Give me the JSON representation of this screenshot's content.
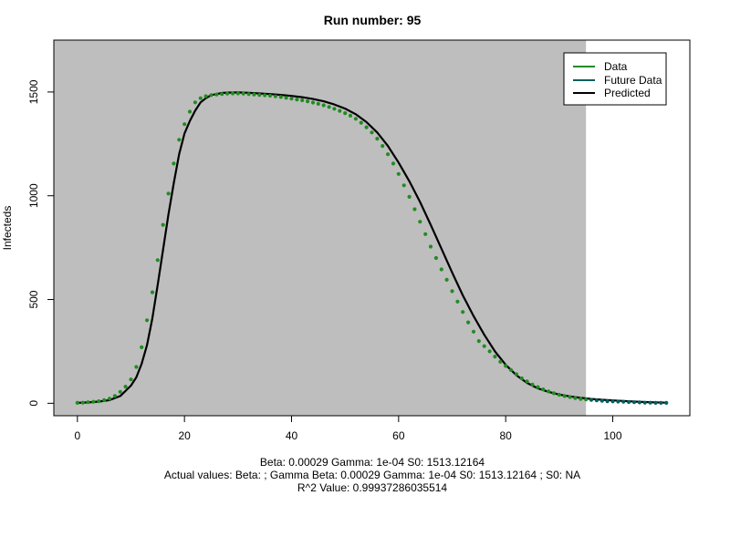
{
  "chart_data": {
    "type": "line",
    "title": "Run number:  95",
    "xlabel": "",
    "ylabel": "Infecteds",
    "xlim": [
      -4.4,
      114.4
    ],
    "ylim": [
      -60,
      1750
    ],
    "x_ticks": [
      0,
      20,
      40,
      60,
      80,
      100
    ],
    "y_ticks": [
      0,
      500,
      1000,
      1500
    ],
    "legend": {
      "position": "top-right",
      "entries": [
        "Data",
        "Future Data",
        "Predicted"
      ]
    },
    "shaded_region": {
      "x_start": -4.4,
      "x_end": 95,
      "color": "#bebebe"
    },
    "series": [
      {
        "name": "Data",
        "kind": "points",
        "color": "#228b22",
        "x": [
          0,
          1,
          2,
          3,
          4,
          5,
          6,
          7,
          8,
          9,
          10,
          11,
          12,
          13,
          14,
          15,
          16,
          17,
          18,
          19,
          20,
          21,
          22,
          23,
          24,
          25,
          26,
          27,
          28,
          29,
          30,
          31,
          32,
          33,
          34,
          35,
          36,
          37,
          38,
          39,
          40,
          41,
          42,
          43,
          44,
          45,
          46,
          47,
          48,
          49,
          50,
          51,
          52,
          53,
          54,
          55,
          56,
          57,
          58,
          59,
          60,
          61,
          62,
          63,
          64,
          65,
          66,
          67,
          68,
          69,
          70,
          71,
          72,
          73,
          74,
          75,
          76,
          77,
          78,
          79,
          80,
          81,
          82,
          83,
          84,
          85,
          86,
          87,
          88,
          89,
          90,
          91,
          92,
          93,
          94,
          95
        ],
        "y": [
          2,
          3,
          5,
          7,
          10,
          15,
          22,
          35,
          55,
          80,
          115,
          175,
          270,
          400,
          535,
          690,
          860,
          1010,
          1155,
          1270,
          1345,
          1405,
          1450,
          1470,
          1480,
          1485,
          1488,
          1490,
          1492,
          1493,
          1493,
          1492,
          1490,
          1488,
          1486,
          1484,
          1482,
          1479,
          1476,
          1472,
          1468,
          1464,
          1460,
          1455,
          1449,
          1443,
          1436,
          1428,
          1419,
          1409,
          1398,
          1386,
          1371,
          1352,
          1330,
          1305,
          1275,
          1240,
          1200,
          1155,
          1105,
          1050,
          995,
          935,
          875,
          815,
          755,
          700,
          645,
          595,
          540,
          490,
          440,
          390,
          345,
          300,
          275,
          250,
          225,
          200,
          180,
          160,
          140,
          120,
          105,
          90,
          78,
          67,
          57,
          48,
          41,
          35,
          30,
          25,
          21,
          18
        ]
      },
      {
        "name": "Future Data",
        "kind": "points",
        "color": "#006060",
        "x": [
          96,
          97,
          98,
          99,
          100,
          101,
          102,
          103,
          104,
          105,
          106,
          107,
          108,
          109,
          110
        ],
        "y": [
          16,
          14,
          12,
          10,
          9,
          8,
          7,
          6,
          5,
          4,
          3,
          3,
          2,
          2,
          2
        ]
      },
      {
        "name": "Predicted",
        "kind": "line",
        "color": "#000000",
        "x": [
          0,
          2,
          4,
          6,
          8,
          10,
          11,
          12,
          13,
          14,
          15,
          16,
          17,
          18,
          19,
          20,
          21,
          22,
          23,
          24,
          25,
          26,
          27,
          28,
          30,
          32,
          34,
          36,
          38,
          40,
          42,
          44,
          46,
          48,
          50,
          52,
          54,
          56,
          58,
          60,
          62,
          64,
          66,
          68,
          70,
          72,
          74,
          76,
          78,
          80,
          82,
          84,
          86,
          88,
          90,
          92,
          94,
          96,
          98,
          100,
          102,
          104,
          106,
          108,
          110
        ],
        "y": [
          2,
          4,
          8,
          15,
          35,
          85,
          125,
          190,
          280,
          410,
          570,
          740,
          910,
          1060,
          1200,
          1300,
          1360,
          1410,
          1450,
          1470,
          1485,
          1490,
          1495,
          1497,
          1498,
          1496,
          1493,
          1490,
          1486,
          1481,
          1475,
          1466,
          1455,
          1440,
          1420,
          1393,
          1355,
          1305,
          1240,
          1160,
          1070,
          970,
          860,
          745,
          630,
          520,
          420,
          330,
          250,
          185,
          135,
          98,
          72,
          55,
          42,
          33,
          26,
          21,
          17,
          14,
          11,
          8,
          6,
          4,
          3
        ]
      }
    ],
    "captions": [
      "Beta:  0.00029 Gamma:  1e-04 S0:  1513.12164",
      "Actual values: Beta:    ; Gamma  Beta:  0.00029 Gamma:  1e-04 S0:  1513.12164 ; S0:  NA",
      "R^2 Value:  0.99937286035514"
    ]
  }
}
